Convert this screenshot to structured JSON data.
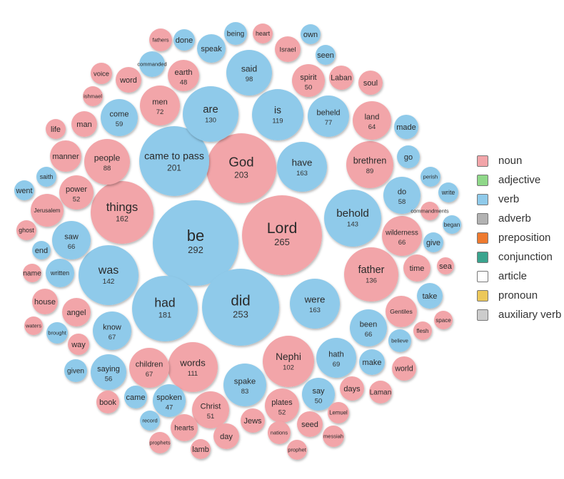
{
  "chart_data": {
    "type": "bubble",
    "colors": {
      "noun": "#f2a5a9",
      "verb": "#8fcaea",
      "adjective": "#8fd889",
      "adverb": "#b2b2b2",
      "preposition": "#ee7a2f",
      "conjunction": "#3aa48e",
      "article": "#ffffff",
      "pronoun": "#ecc85a",
      "auxiliary verb": "#cccccc"
    },
    "legend": {
      "placement": "right",
      "entries": [
        "noun",
        "adjective",
        "verb",
        "adverb",
        "preposition",
        "conjunction",
        "article",
        "pronoun",
        "auxiliary verb"
      ]
    },
    "points": [
      {
        "word": "be",
        "value": 292,
        "pos": "verb"
      },
      {
        "word": "Lord",
        "value": 265,
        "pos": "noun"
      },
      {
        "word": "did",
        "value": 253,
        "pos": "verb"
      },
      {
        "word": "God",
        "value": 203,
        "pos": "noun"
      },
      {
        "word": "came to pass",
        "value": 201,
        "pos": "verb"
      },
      {
        "word": "had",
        "value": 181,
        "pos": "verb"
      },
      {
        "word": "have",
        "value": 163,
        "pos": "verb"
      },
      {
        "word": "were",
        "value": 163,
        "pos": "verb"
      },
      {
        "word": "things",
        "value": 162,
        "pos": "noun"
      },
      {
        "word": "behold",
        "value": 143,
        "pos": "verb"
      },
      {
        "word": "was",
        "value": 142,
        "pos": "verb"
      },
      {
        "word": "father",
        "value": 136,
        "pos": "noun"
      },
      {
        "word": "are",
        "value": 130,
        "pos": "verb"
      },
      {
        "word": "is",
        "value": 119,
        "pos": "verb"
      },
      {
        "word": "words",
        "value": 111,
        "pos": "noun"
      },
      {
        "word": "Nephi",
        "value": 102,
        "pos": "noun"
      },
      {
        "word": "said",
        "value": 98,
        "pos": "verb"
      },
      {
        "word": "brethren",
        "value": 89,
        "pos": "noun"
      },
      {
        "word": "people",
        "value": 88,
        "pos": "noun"
      },
      {
        "word": "spake",
        "value": 83,
        "pos": "verb"
      },
      {
        "word": "beheld",
        "value": 77,
        "pos": "verb"
      },
      {
        "word": "men",
        "value": 72,
        "pos": "noun"
      },
      {
        "word": "hath",
        "value": 69,
        "pos": "verb"
      },
      {
        "word": "know",
        "value": 67,
        "pos": "verb"
      },
      {
        "word": "children",
        "value": 67,
        "pos": "noun"
      },
      {
        "word": "saw",
        "value": 66,
        "pos": "verb"
      },
      {
        "word": "wilderness",
        "value": 66,
        "pos": "noun"
      },
      {
        "word": "been",
        "value": 66,
        "pos": "verb"
      },
      {
        "word": "land",
        "value": 64,
        "pos": "noun"
      },
      {
        "word": "come",
        "value": 59,
        "pos": "verb"
      },
      {
        "word": "do",
        "value": 58,
        "pos": "verb"
      },
      {
        "word": "saying",
        "value": 56,
        "pos": "verb"
      },
      {
        "word": "power",
        "value": 52,
        "pos": "noun"
      },
      {
        "word": "plates",
        "value": 52,
        "pos": "noun"
      },
      {
        "word": "Christ",
        "value": 51,
        "pos": "noun"
      },
      {
        "word": "spirit",
        "value": 50,
        "pos": "noun"
      },
      {
        "word": "say",
        "value": 50,
        "pos": "verb"
      },
      {
        "word": "earth",
        "value": 48,
        "pos": "noun"
      },
      {
        "word": "spoken",
        "value": 47,
        "pos": "verb"
      },
      {
        "word": "fathers",
        "pos": "noun"
      },
      {
        "word": "done",
        "pos": "verb"
      },
      {
        "word": "speak",
        "pos": "verb"
      },
      {
        "word": "being",
        "pos": "verb"
      },
      {
        "word": "heart",
        "pos": "noun"
      },
      {
        "word": "own",
        "pos": "verb"
      },
      {
        "word": "Israel",
        "pos": "noun"
      },
      {
        "word": "seen",
        "pos": "verb"
      },
      {
        "word": "commanded",
        "pos": "verb"
      },
      {
        "word": "voice",
        "pos": "noun"
      },
      {
        "word": "word",
        "pos": "noun"
      },
      {
        "word": "Laban",
        "pos": "noun"
      },
      {
        "word": "soul",
        "pos": "noun"
      },
      {
        "word": "ishmael",
        "pos": "noun"
      },
      {
        "word": "life",
        "pos": "noun"
      },
      {
        "word": "man",
        "pos": "noun"
      },
      {
        "word": "made",
        "pos": "verb"
      },
      {
        "word": "manner",
        "pos": "noun"
      },
      {
        "word": "go",
        "pos": "verb"
      },
      {
        "word": "saith",
        "pos": "verb"
      },
      {
        "word": "perish",
        "pos": "verb"
      },
      {
        "word": "went",
        "pos": "verb"
      },
      {
        "word": "write",
        "pos": "verb"
      },
      {
        "word": "Jerusalem",
        "pos": "noun"
      },
      {
        "word": "commandments",
        "pos": "noun"
      },
      {
        "word": "ghost",
        "pos": "noun"
      },
      {
        "word": "began",
        "pos": "verb"
      },
      {
        "word": "end",
        "pos": "verb"
      },
      {
        "word": "give",
        "pos": "verb"
      },
      {
        "word": "name",
        "pos": "noun"
      },
      {
        "word": "written",
        "pos": "verb"
      },
      {
        "word": "time",
        "pos": "noun"
      },
      {
        "word": "sea",
        "pos": "noun"
      },
      {
        "word": "house",
        "pos": "noun"
      },
      {
        "word": "take",
        "pos": "verb"
      },
      {
        "word": "angel",
        "pos": "noun"
      },
      {
        "word": "Gentiles",
        "pos": "noun"
      },
      {
        "word": "space",
        "pos": "noun"
      },
      {
        "word": "waters",
        "pos": "noun"
      },
      {
        "word": "brought",
        "pos": "verb"
      },
      {
        "word": "flesh",
        "pos": "noun"
      },
      {
        "word": "way",
        "pos": "noun"
      },
      {
        "word": "believe",
        "pos": "verb"
      },
      {
        "word": "make",
        "pos": "verb"
      },
      {
        "word": "given",
        "pos": "verb"
      },
      {
        "word": "world",
        "pos": "noun"
      },
      {
        "word": "days",
        "pos": "noun"
      },
      {
        "word": "Laman",
        "pos": "noun"
      },
      {
        "word": "book",
        "pos": "noun"
      },
      {
        "word": "came",
        "pos": "verb"
      },
      {
        "word": "Lemuel",
        "pos": "noun"
      },
      {
        "word": "record",
        "pos": "verb"
      },
      {
        "word": "hearts",
        "pos": "noun"
      },
      {
        "word": "Jews",
        "pos": "noun"
      },
      {
        "word": "seed",
        "pos": "noun"
      },
      {
        "word": "prophets",
        "pos": "noun"
      },
      {
        "word": "day",
        "pos": "noun"
      },
      {
        "word": "nations",
        "pos": "noun"
      },
      {
        "word": "messiah",
        "pos": "noun"
      },
      {
        "word": "lamb",
        "pos": "noun"
      },
      {
        "word": "prophet",
        "pos": "noun"
      }
    ]
  }
}
